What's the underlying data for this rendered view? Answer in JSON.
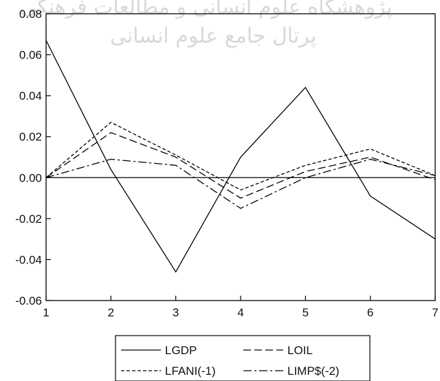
{
  "watermark": {
    "line1": "پژوهشگاه علوم انسانی و مطالعات فرهنگی",
    "line2": "پرتال جامع علوم انسانی"
  },
  "chart_data": {
    "type": "line",
    "x": [
      1,
      2,
      3,
      4,
      5,
      6,
      7
    ],
    "xlim": [
      1,
      7
    ],
    "ylim": [
      -0.06,
      0.08
    ],
    "xticks": [
      "1",
      "2",
      "3",
      "4",
      "5",
      "6",
      "7"
    ],
    "yticks": [
      "0.08",
      "0.06",
      "0.04",
      "0.02",
      "0.00",
      "-0.02",
      "-0.04",
      "-0.06"
    ],
    "ytick_values": [
      0.08,
      0.06,
      0.04,
      0.02,
      0.0,
      -0.02,
      -0.04,
      -0.06
    ],
    "zero_line": true,
    "grid": false,
    "legend_position": "bottom-center",
    "series": [
      {
        "name": "LGDP",
        "values": [
          0.067,
          0.004,
          -0.046,
          0.01,
          0.044,
          -0.009,
          -0.03
        ],
        "style": "solid"
      },
      {
        "name": "LOIL",
        "values": [
          0.0,
          0.022,
          0.01,
          -0.01,
          0.003,
          0.01,
          -0.001
        ],
        "style": "longdash"
      },
      {
        "name": "LFANI(-1)",
        "values": [
          0.0,
          0.027,
          0.011,
          -0.006,
          0.006,
          0.014,
          0.001
        ],
        "style": "shortdash"
      },
      {
        "name": "LIMP$(-2)",
        "values": [
          0.0,
          0.009,
          0.006,
          -0.015,
          0.0,
          0.009,
          0.001
        ],
        "style": "dashdot"
      }
    ]
  }
}
